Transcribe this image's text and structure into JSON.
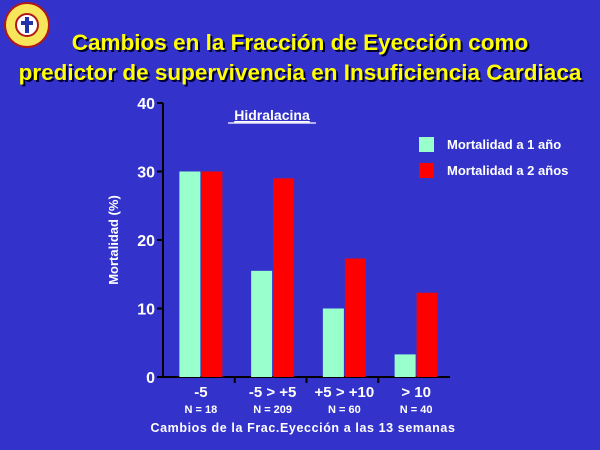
{
  "title_line1": "Cambios en la Fracción de Eyección como",
  "title_line2": "predictor de supervivencia en Insuficiencia Cardiaca",
  "chart_data": {
    "type": "bar",
    "subtitle": "Hidralacina",
    "categories": [
      "-5",
      "-5 > +5",
      "+5 > +10",
      "> 10"
    ],
    "n_labels": [
      "N = 18",
      "N = 209",
      "N = 60",
      "N = 40"
    ],
    "series": [
      {
        "name": "Mortalidad a 1 año",
        "color": "#99ffcc",
        "values": [
          30,
          15.5,
          10,
          3.3
        ]
      },
      {
        "name": "Mortalidad a 2 años",
        "color": "#ff0000",
        "values": [
          30,
          29,
          17.3,
          12.3
        ]
      }
    ],
    "ylabel": "Mortalidad (%)",
    "xlabel": "Cambios de la Frac.Eyección a las 13 semanas",
    "ylim": [
      0,
      40
    ],
    "yticks": [
      0,
      10,
      20,
      30,
      40
    ],
    "legend": "top-right",
    "grid": false
  }
}
